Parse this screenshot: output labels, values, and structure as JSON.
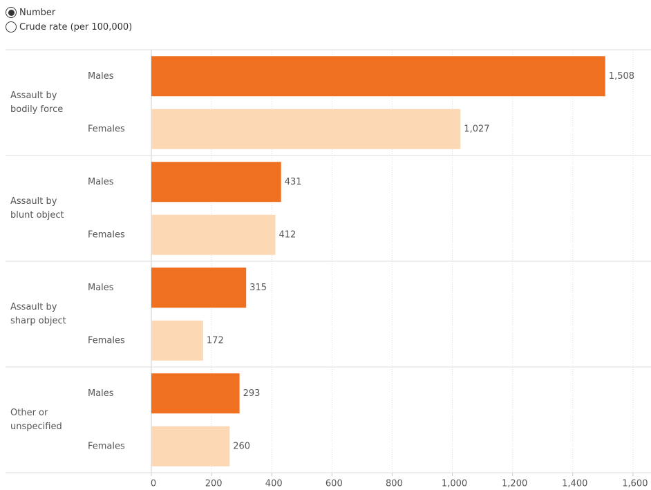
{
  "controls": {
    "options": [
      "Number",
      "Crude rate (per 100,000)"
    ],
    "selected": 0
  },
  "chart_data": {
    "type": "bar",
    "orientation": "horizontal",
    "categories": [
      "Assault by bodily force",
      "Assault by blunt object",
      "Assault by sharp object",
      "Other or unspecified"
    ],
    "series": [
      {
        "name": "Males",
        "color": "#f07022",
        "values": [
          1508,
          431,
          315,
          293
        ],
        "value_labels": [
          "1,508",
          "431",
          "315",
          "293"
        ]
      },
      {
        "name": "Females",
        "color": "#fdd8b4",
        "values": [
          1027,
          412,
          172,
          260
        ],
        "value_labels": [
          "1,027",
          "412",
          "172",
          "260"
        ]
      }
    ],
    "xlim": [
      0,
      1660
    ],
    "xticks": [
      0,
      200,
      400,
      600,
      800,
      {
        "value": 1000,
        "label": "1,000"
      },
      {
        "value": 1200,
        "label": "1,200"
      },
      {
        "value": 1400,
        "label": "1,400"
      },
      {
        "value": 1600,
        "label": "1,600"
      }
    ],
    "grid": true
  }
}
